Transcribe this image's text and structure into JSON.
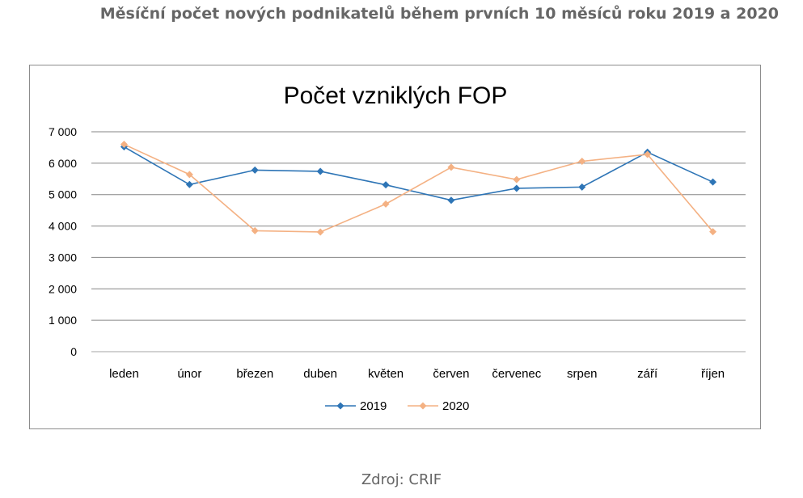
{
  "page": {
    "heading": "Měsíční počet nových podnikatelů během prvních 10 měsíců roku 2019 a 2020",
    "source": "Zdroj: CRIF"
  },
  "chart_data": {
    "type": "line",
    "title": "Počet vzniklých FOP",
    "xlabel": "",
    "ylabel": "",
    "categories": [
      "leden",
      "únor",
      "březen",
      "duben",
      "květen",
      "červen",
      "červenec",
      "srpen",
      "září",
      "říjen"
    ],
    "series": [
      {
        "name": "2019",
        "color": "#2e75b6",
        "marker": "diamond",
        "values": [
          6520,
          5320,
          5780,
          5740,
          5310,
          4820,
          5200,
          5240,
          6350,
          5400
        ]
      },
      {
        "name": "2020",
        "color": "#f4b183",
        "marker": "diamond",
        "values": [
          6600,
          5640,
          3850,
          3810,
          4700,
          5870,
          5480,
          6060,
          6280,
          3820
        ]
      }
    ],
    "ylim": [
      0,
      7000
    ],
    "yticks": [
      0,
      1000,
      2000,
      3000,
      4000,
      5000,
      6000,
      7000
    ],
    "ytick_labels": [
      "0",
      "1 000",
      "2 000",
      "3 000",
      "4 000",
      "5 000",
      "6 000",
      "7 000"
    ],
    "grid": true,
    "legend_position": "bottom"
  }
}
